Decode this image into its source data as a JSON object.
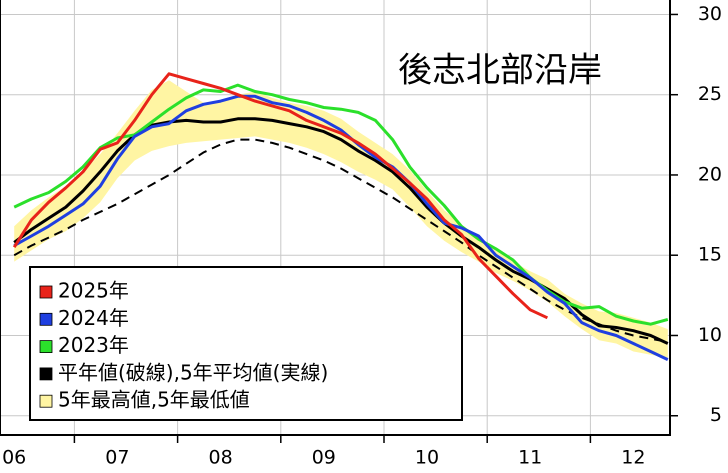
{
  "chart_data": {
    "type": "line",
    "title": "後志北部沿岸",
    "categories": [
      "06",
      null,
      null,
      null,
      null,
      null,
      "07",
      null,
      null,
      null,
      null,
      null,
      "08",
      null,
      null,
      null,
      null,
      null,
      "09",
      null,
      null,
      null,
      null,
      null,
      "10",
      null,
      null,
      null,
      null,
      null,
      "11",
      null,
      null,
      null,
      null,
      null,
      "12",
      null,
      null
    ],
    "ylim": [
      3.8,
      30.9
    ],
    "yticks": [
      5,
      10,
      15,
      20,
      25,
      30
    ],
    "grid": true,
    "legend": "bottom-left",
    "series": [
      {
        "name": "2025年",
        "color": "#e8231a",
        "values": [
          15.5,
          17.2,
          18.3,
          19.2,
          20.2,
          21.6,
          22.0,
          23.4,
          25.0,
          26.3,
          26.0,
          25.7,
          25.4,
          25.0,
          24.6,
          24.3,
          24.0,
          23.4,
          23.0,
          22.6,
          22.0,
          21.3,
          20.4,
          19.5,
          18.5,
          17.2,
          16.3,
          14.8,
          13.7,
          12.6,
          11.6,
          11.1,
          null,
          null,
          null,
          null,
          null,
          null,
          null
        ]
      },
      {
        "name": "2024年",
        "color": "#1f3fe0",
        "values": [
          15.6,
          16.2,
          16.8,
          17.5,
          18.2,
          19.3,
          21.0,
          22.4,
          23.0,
          23.2,
          24.0,
          24.4,
          24.6,
          24.9,
          24.9,
          24.5,
          24.3,
          23.9,
          23.4,
          22.8,
          21.9,
          21.1,
          20.5,
          19.5,
          18.2,
          17.0,
          16.7,
          16.2,
          15.0,
          14.3,
          13.6,
          12.7,
          12.0,
          10.8,
          10.3,
          10.0,
          9.5,
          9.0,
          8.5
        ]
      },
      {
        "name": "2023年",
        "color": "#2be02b",
        "values": [
          18.0,
          18.5,
          18.9,
          19.6,
          20.5,
          21.7,
          22.3,
          22.5,
          23.3,
          24.1,
          24.8,
          25.3,
          25.2,
          25.6,
          25.2,
          25.0,
          24.7,
          24.5,
          24.2,
          24.1,
          23.9,
          23.4,
          22.2,
          20.5,
          19.2,
          18.1,
          16.8,
          16.0,
          15.4,
          14.7,
          13.6,
          12.8,
          12.1,
          11.7,
          11.8,
          11.2,
          10.9,
          10.7,
          11.0
        ]
      },
      {
        "name": "平年値(破線),5年平均値(実線)",
        "color": "#000000",
        "values": [
          15.8,
          16.6,
          17.3,
          18.0,
          19.0,
          20.2,
          21.5,
          22.5,
          23.1,
          23.3,
          23.4,
          23.3,
          23.3,
          23.5,
          23.5,
          23.4,
          23.2,
          23.0,
          22.7,
          22.2,
          21.5,
          20.9,
          20.2,
          19.2,
          18.0,
          17.0,
          16.2,
          15.5,
          14.7,
          14.0,
          13.5,
          12.9,
          12.3,
          11.3,
          10.6,
          10.5,
          10.3,
          10.0,
          9.5
        ],
        "normal_values": [
          15.0,
          15.6,
          16.1,
          16.6,
          17.2,
          17.7,
          18.2,
          18.8,
          19.4,
          20.0,
          20.7,
          21.4,
          21.9,
          22.2,
          22.2,
          22.0,
          21.7,
          21.3,
          20.9,
          20.4,
          19.8,
          19.2,
          18.6,
          17.9,
          17.2,
          16.5,
          15.8,
          15.0,
          14.3,
          13.6,
          12.9,
          12.2,
          11.6,
          11.1,
          10.7,
          10.3,
          10.0,
          9.8,
          9.6
        ]
      },
      {
        "name": "5年最高値,5年最低値",
        "color": "#fff5a3",
        "max_values": [
          16.8,
          17.8,
          18.6,
          19.3,
          20.2,
          21.3,
          22.6,
          24.0,
          25.3,
          25.9,
          25.2,
          24.5,
          24.6,
          25.0,
          25.2,
          24.8,
          24.5,
          24.3,
          24.0,
          23.5,
          22.7,
          22.0,
          21.3,
          20.3,
          19.0,
          17.8,
          16.9,
          16.2,
          15.3,
          14.6,
          14.0,
          13.5,
          12.6,
          12.0,
          11.5,
          11.4,
          11.1,
          10.8,
          10.4
        ],
        "min_values": [
          14.6,
          15.3,
          16.0,
          16.5,
          17.3,
          18.3,
          19.8,
          20.9,
          21.5,
          21.8,
          22.0,
          22.1,
          22.2,
          22.3,
          22.4,
          22.2,
          22.0,
          21.7,
          21.3,
          20.8,
          20.2,
          19.7,
          19.1,
          18.0,
          16.8,
          15.9,
          15.2,
          14.6,
          13.9,
          13.4,
          12.8,
          12.1,
          11.2,
          10.4,
          9.7,
          9.5,
          9.0,
          8.8,
          8.6
        ]
      }
    ]
  }
}
